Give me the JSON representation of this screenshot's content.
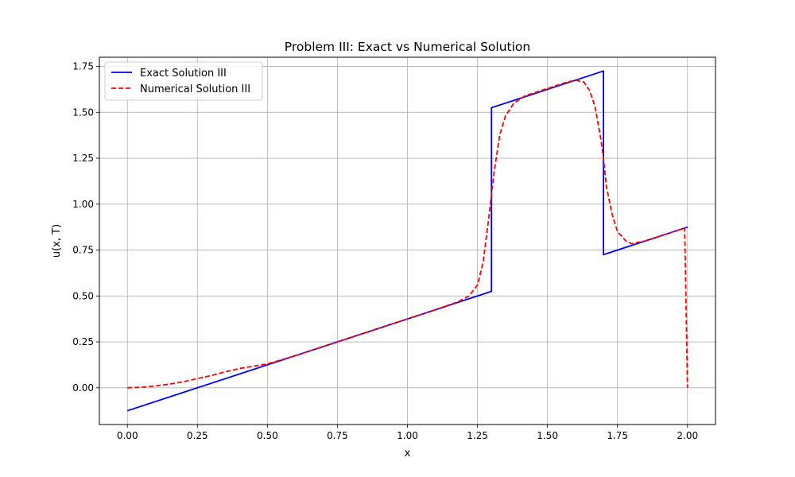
{
  "chart_data": {
    "type": "line",
    "title": "Problem III: Exact vs Numerical Solution",
    "xlabel": "x",
    "ylabel": "u(x, T)",
    "xlim": [
      -0.1,
      2.1
    ],
    "ylim": [
      -0.2,
      1.8
    ],
    "x_ticks": [
      0.0,
      0.25,
      0.5,
      0.75,
      1.0,
      1.25,
      1.5,
      1.75,
      2.0
    ],
    "x_tick_labels": [
      "0.00",
      "0.25",
      "0.50",
      "0.75",
      "1.00",
      "1.25",
      "1.50",
      "1.75",
      "2.00"
    ],
    "y_ticks": [
      0.0,
      0.25,
      0.5,
      0.75,
      1.0,
      1.25,
      1.5,
      1.75
    ],
    "y_tick_labels": [
      "0.00",
      "0.25",
      "0.50",
      "0.75",
      "1.00",
      "1.25",
      "1.50",
      "1.75"
    ],
    "grid": true,
    "legend_position": "top-left",
    "series": [
      {
        "name": "Exact Solution III",
        "color": "#0000ff",
        "style": "solid",
        "x": [
          0.0,
          1.3,
          1.3,
          1.7,
          1.7,
          2.0
        ],
        "y": [
          -0.125,
          0.525,
          1.525,
          1.725,
          0.725,
          0.875
        ]
      },
      {
        "name": "Numerical Solution III",
        "color": "#ff0000",
        "style": "dashed",
        "x": [
          0.0,
          0.05,
          0.1,
          0.15,
          0.2,
          0.25,
          0.3,
          0.35,
          0.4,
          0.5,
          0.6,
          0.75,
          0.9,
          1.0,
          1.1,
          1.18,
          1.22,
          1.25,
          1.27,
          1.29,
          1.31,
          1.33,
          1.35,
          1.38,
          1.42,
          1.47,
          1.52,
          1.57,
          1.6,
          1.63,
          1.65,
          1.67,
          1.69,
          1.7,
          1.71,
          1.73,
          1.75,
          1.78,
          1.8,
          1.85,
          1.9,
          1.95,
          1.99,
          2.0
        ],
        "y": [
          0.0,
          0.003,
          0.01,
          0.02,
          0.033,
          0.05,
          0.067,
          0.087,
          0.105,
          0.13,
          0.175,
          0.25,
          0.325,
          0.375,
          0.425,
          0.468,
          0.5,
          0.56,
          0.68,
          0.92,
          1.18,
          1.38,
          1.48,
          1.55,
          1.59,
          1.615,
          1.64,
          1.665,
          1.675,
          1.665,
          1.62,
          1.53,
          1.36,
          1.25,
          1.1,
          0.95,
          0.85,
          0.8,
          0.785,
          0.8,
          0.825,
          0.85,
          0.87,
          0.0
        ]
      }
    ]
  }
}
